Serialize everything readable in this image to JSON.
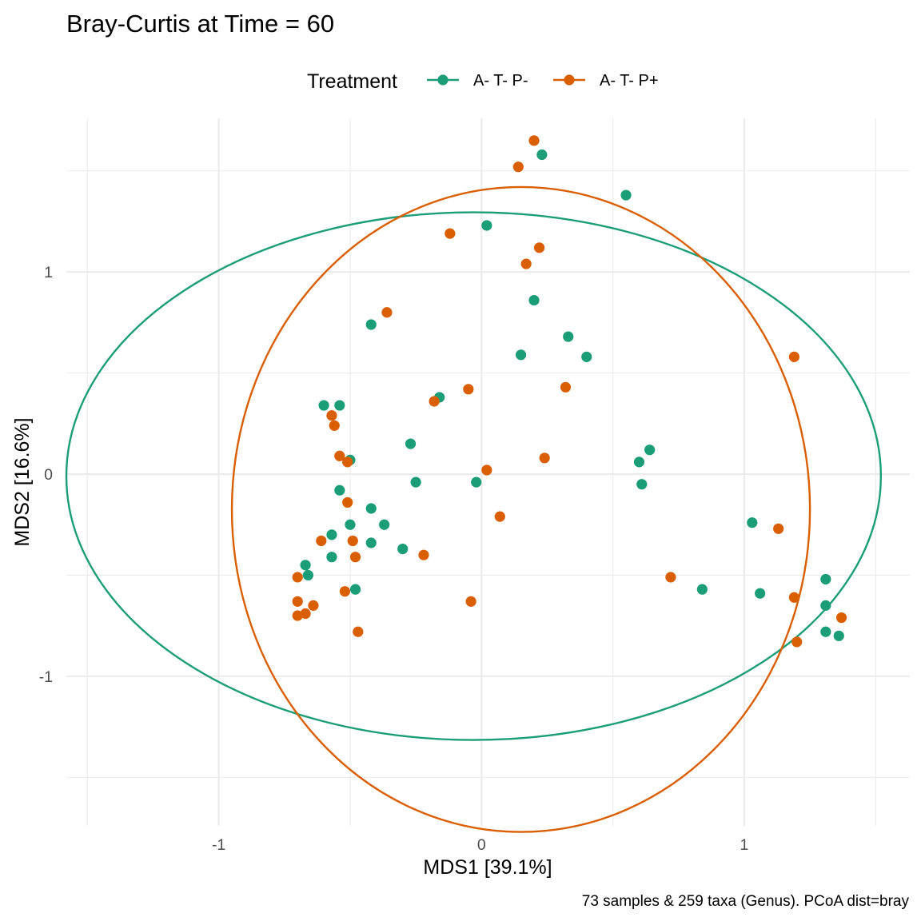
{
  "chart_data": {
    "type": "scatter",
    "title": "Bray-Curtis at Time = 60",
    "xlabel": "MDS1 [39.1%]",
    "ylabel": "MDS2 [16.6%]",
    "caption": "73 samples & 259 taxa (Genus). PCoA dist=bray",
    "legend": {
      "title": "Treatment",
      "placement": "top"
    },
    "xlim": [
      -1.58,
      1.63
    ],
    "ylim": [
      -1.74,
      1.76
    ],
    "x_ticks": [
      -1,
      0,
      1
    ],
    "x_tick_labels": [
      "-1",
      "0",
      "1"
    ],
    "y_ticks": [
      -1,
      0,
      1
    ],
    "y_tick_labels": [
      "-1",
      "0",
      "1"
    ],
    "grid": true,
    "series": [
      {
        "name": "A- T- P-",
        "color": "#1b9e77",
        "ellipse": {
          "center": [
            -0.03,
            -0.01
          ],
          "rx": 1.55,
          "ry": 1.305
        },
        "points": [
          [
            0.23,
            1.58
          ],
          [
            0.55,
            1.38
          ],
          [
            0.02,
            1.23
          ],
          [
            0.2,
            0.86
          ],
          [
            0.33,
            0.68
          ],
          [
            0.15,
            0.59
          ],
          [
            0.4,
            0.58
          ],
          [
            -0.42,
            0.74
          ],
          [
            -0.16,
            0.38
          ],
          [
            -0.6,
            0.34
          ],
          [
            -0.54,
            0.34
          ],
          [
            -0.5,
            0.07
          ],
          [
            -0.27,
            0.15
          ],
          [
            -0.25,
            -0.04
          ],
          [
            -0.02,
            -0.04
          ],
          [
            -0.54,
            -0.08
          ],
          [
            -0.42,
            -0.17
          ],
          [
            -0.5,
            -0.25
          ],
          [
            -0.37,
            -0.25
          ],
          [
            -0.57,
            -0.3
          ],
          [
            -0.42,
            -0.34
          ],
          [
            -0.3,
            -0.37
          ],
          [
            -0.57,
            -0.41
          ],
          [
            -0.67,
            -0.45
          ],
          [
            -0.66,
            -0.5
          ],
          [
            -0.48,
            -0.57
          ],
          [
            0.6,
            0.06
          ],
          [
            0.64,
            0.12
          ],
          [
            0.61,
            -0.05
          ],
          [
            1.03,
            -0.24
          ],
          [
            0.84,
            -0.57
          ],
          [
            1.06,
            -0.59
          ],
          [
            1.31,
            -0.52
          ],
          [
            1.31,
            -0.65
          ],
          [
            1.36,
            -0.8
          ],
          [
            1.31,
            -0.78
          ]
        ]
      },
      {
        "name": "A- T- P+",
        "color": "#d95f02",
        "ellipse": {
          "center": [
            0.15,
            -0.175
          ],
          "rx": 1.1,
          "ry": 1.595
        },
        "points": [
          [
            0.2,
            1.65
          ],
          [
            0.14,
            1.52
          ],
          [
            -0.12,
            1.19
          ],
          [
            0.22,
            1.12
          ],
          [
            0.17,
            1.04
          ],
          [
            -0.36,
            0.8
          ],
          [
            -0.05,
            0.42
          ],
          [
            0.32,
            0.43
          ],
          [
            -0.18,
            0.36
          ],
          [
            -0.57,
            0.29
          ],
          [
            -0.56,
            0.24
          ],
          [
            -0.54,
            0.09
          ],
          [
            -0.51,
            0.06
          ],
          [
            0.02,
            0.02
          ],
          [
            0.24,
            0.08
          ],
          [
            -0.51,
            -0.14
          ],
          [
            0.07,
            -0.21
          ],
          [
            -0.61,
            -0.33
          ],
          [
            -0.49,
            -0.33
          ],
          [
            -0.48,
            -0.41
          ],
          [
            -0.22,
            -0.4
          ],
          [
            -0.7,
            -0.51
          ],
          [
            -0.52,
            -0.58
          ],
          [
            -0.04,
            -0.63
          ],
          [
            -0.7,
            -0.63
          ],
          [
            -0.64,
            -0.65
          ],
          [
            -0.67,
            -0.69
          ],
          [
            -0.7,
            -0.7
          ],
          [
            -0.47,
            -0.78
          ],
          [
            0.72,
            -0.51
          ],
          [
            1.13,
            -0.27
          ],
          [
            1.19,
            0.58
          ],
          [
            1.19,
            -0.61
          ],
          [
            1.2,
            -0.83
          ],
          [
            1.37,
            -0.71
          ]
        ]
      }
    ]
  }
}
